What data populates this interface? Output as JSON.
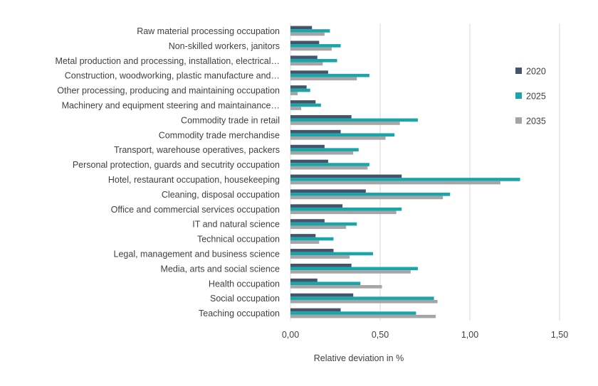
{
  "chart_data": {
    "type": "bar",
    "orientation": "horizontal",
    "categories": [
      "Raw material processing occupation",
      "Non-skilled workers, janitors",
      "Metal production and processing, installation, electrical…",
      "Construction, woodworking, plastic manufacture and…",
      "Other processing, producing and maintaining occupation",
      "Machinery and equipment steering and maintainance…",
      "Commodity trade in retail",
      "Commodity trade merchandise",
      "Transport, warehouse operatives, packers",
      "Personal protection, guards and secutrity occupation",
      "Hotel, restaurant occupation, housekeeping",
      "Cleaning, disposal occupation",
      "Office and commercial services occupation",
      "IT and natural science",
      "Technical occupation",
      "Legal, management and business science",
      "Media, arts and social science",
      "Health occupation",
      "Social occupation",
      "Teaching occupation"
    ],
    "series": [
      {
        "name": "2020",
        "color": "#44546a",
        "values": [
          0.12,
          0.16,
          0.15,
          0.21,
          0.09,
          0.14,
          0.34,
          0.28,
          0.19,
          0.21,
          0.62,
          0.42,
          0.29,
          0.19,
          0.14,
          0.24,
          0.34,
          0.15,
          0.35,
          0.28
        ]
      },
      {
        "name": "2025",
        "color": "#1aa5a8",
        "values": [
          0.22,
          0.28,
          0.26,
          0.44,
          0.11,
          0.17,
          0.71,
          0.58,
          0.38,
          0.44,
          1.28,
          0.89,
          0.62,
          0.37,
          0.24,
          0.46,
          0.71,
          0.39,
          0.8,
          0.7
        ]
      },
      {
        "name": "2035",
        "color": "#a5a5a5",
        "values": [
          0.19,
          0.23,
          0.18,
          0.37,
          0.04,
          0.06,
          0.61,
          0.53,
          0.35,
          0.43,
          1.17,
          0.85,
          0.59,
          0.31,
          0.16,
          0.33,
          0.67,
          0.51,
          0.82,
          0.81
        ]
      }
    ],
    "xlabel": "Relative deviation in %",
    "xlim": [
      0,
      1.5
    ],
    "xticks": [
      "0,00",
      "0,50",
      "1,00",
      "1,50"
    ],
    "grid": true,
    "legend_position": "right"
  }
}
